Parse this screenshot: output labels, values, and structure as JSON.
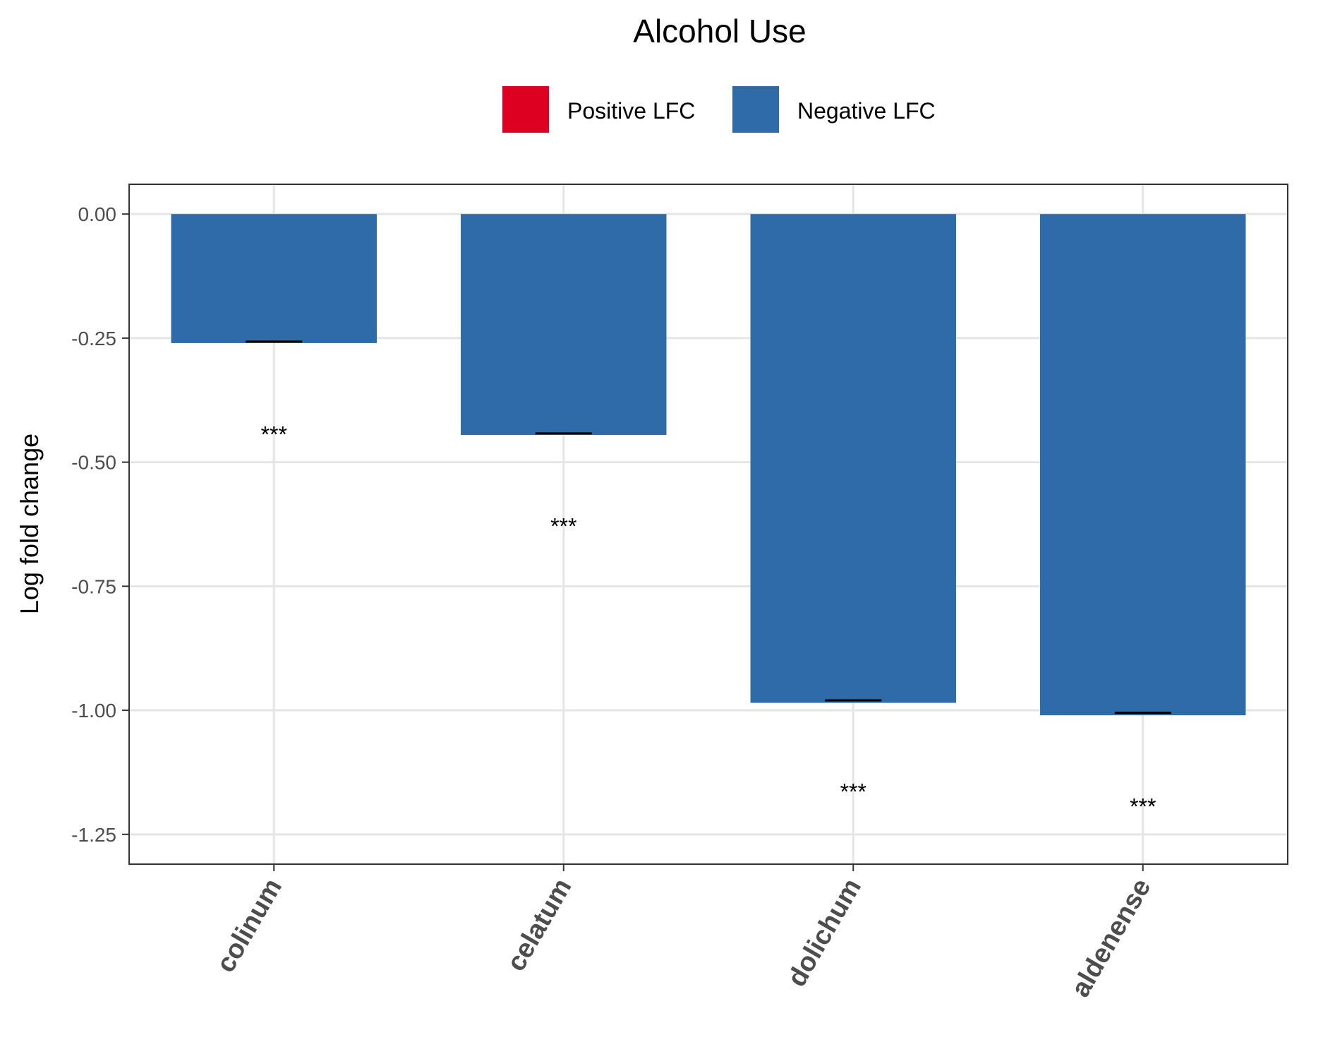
{
  "chart_data": {
    "type": "bar",
    "title": "Alcohol Use",
    "xlabel": "",
    "ylabel": "Log fold change",
    "categories": [
      "colinum",
      "celatum",
      "dolichum",
      "aldenense"
    ],
    "series": [
      {
        "values": [
          -0.26,
          -0.445,
          -0.985,
          -1.01
        ],
        "error_low": [
          -0.257,
          -0.442,
          -0.98,
          -1.005
        ],
        "error_high": [
          -0.257,
          -0.442,
          -0.98,
          -1.005
        ],
        "significance": [
          "***",
          "***",
          "***",
          "***"
        ],
        "significance_y": [
          -0.46,
          -0.645,
          -1.18,
          -1.21
        ]
      }
    ],
    "legend": {
      "position": "top",
      "items": [
        {
          "label": "Positive LFC",
          "color": "#dd0020"
        },
        {
          "label": "Negative LFC",
          "color": "#2e6ba8"
        }
      ]
    },
    "bar_color_negative": "#2e6ba8",
    "bar_color_positive": "#dd0020",
    "ylim": [
      -1.31,
      0.06
    ],
    "yticks": [
      0,
      -0.25,
      -0.5,
      -0.75,
      -1.0,
      -1.25
    ],
    "ytick_labels": [
      "0.00",
      "-0.25",
      "-0.50",
      "-0.75",
      "-1.00",
      "-1.25"
    ],
    "grid": true
  }
}
